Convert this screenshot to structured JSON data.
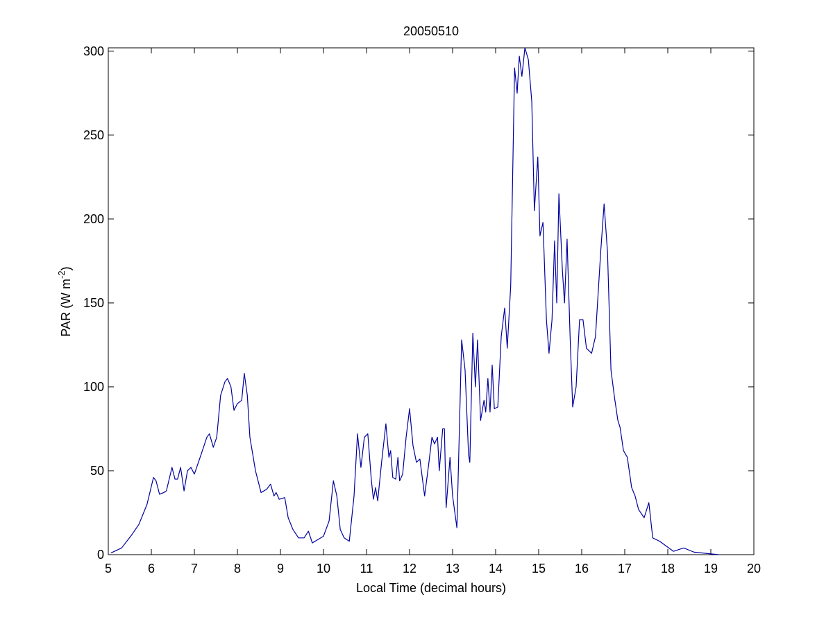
{
  "chart_data": {
    "type": "line",
    "title": "20050510",
    "xlabel": "Local Time (decimal hours)",
    "ylabel_parts": [
      "PAR (W m",
      "-2",
      ")"
    ],
    "xlim": [
      5,
      20
    ],
    "ylim": [
      0,
      302
    ],
    "xticks": [
      5,
      6,
      7,
      8,
      9,
      10,
      11,
      12,
      13,
      14,
      15,
      16,
      17,
      18,
      19,
      20
    ],
    "yticks": [
      0,
      50,
      100,
      150,
      200,
      250,
      300
    ],
    "grid": false,
    "series": [
      {
        "color": "#0000a0",
        "x": [
          5.06,
          5.31,
          5.55,
          5.71,
          5.9,
          6.05,
          6.11,
          6.19,
          6.29,
          6.35,
          6.48,
          6.55,
          6.61,
          6.68,
          6.76,
          6.84,
          6.92,
          7.0,
          7.16,
          7.29,
          7.35,
          7.44,
          7.52,
          7.61,
          7.71,
          7.77,
          7.85,
          7.92,
          8.0,
          8.1,
          8.16,
          8.23,
          8.29,
          8.42,
          8.55,
          8.68,
          8.77,
          8.85,
          8.9,
          8.97,
          9.1,
          9.18,
          9.29,
          9.42,
          9.55,
          9.65,
          9.74,
          9.87,
          10.0,
          10.13,
          10.23,
          10.31,
          10.39,
          10.48,
          10.6,
          10.71,
          10.79,
          10.87,
          10.95,
          11.03,
          11.11,
          11.16,
          11.21,
          11.26,
          11.35,
          11.45,
          11.52,
          11.56,
          11.61,
          11.68,
          11.73,
          11.77,
          11.84,
          11.92,
          12.0,
          12.08,
          12.16,
          12.24,
          12.35,
          12.45,
          12.52,
          12.58,
          12.65,
          12.69,
          12.77,
          12.81,
          12.85,
          12.94,
          13.0,
          13.1,
          13.21,
          13.29,
          13.37,
          13.4,
          13.47,
          13.53,
          13.58,
          13.65,
          13.73,
          13.77,
          13.82,
          13.87,
          13.92,
          13.97,
          14.05,
          14.13,
          14.21,
          14.27,
          14.35,
          14.44,
          14.5,
          14.55,
          14.61,
          14.68,
          14.76,
          14.84,
          14.9,
          14.98,
          15.03,
          15.1,
          15.18,
          15.24,
          15.31,
          15.37,
          15.42,
          15.47,
          15.55,
          15.6,
          15.66,
          15.73,
          15.79,
          15.87,
          15.95,
          16.03,
          16.11,
          16.23,
          16.32,
          16.44,
          16.52,
          16.6,
          16.68,
          16.76,
          16.84,
          16.89,
          16.97,
          17.06,
          17.16,
          17.24,
          17.32,
          17.45,
          17.56,
          17.65,
          17.81,
          17.97,
          18.13,
          18.37,
          18.61,
          19.18
        ],
        "values": [
          1,
          4,
          12,
          18,
          30,
          46,
          44,
          36,
          37,
          38,
          52,
          45,
          45,
          52,
          38,
          50,
          52,
          48,
          60,
          70,
          72,
          64,
          70,
          95,
          103,
          105,
          100,
          86,
          90,
          92,
          108,
          95,
          70,
          50,
          37,
          39,
          42,
          35,
          37,
          33,
          34,
          22,
          15,
          10,
          10,
          14,
          7,
          9,
          11,
          20,
          44,
          35,
          15,
          10,
          8,
          35,
          72,
          52,
          70,
          72,
          45,
          33,
          40,
          32,
          55,
          78,
          58,
          62,
          46,
          45,
          58,
          44,
          48,
          70,
          87,
          65,
          55,
          57,
          35,
          55,
          70,
          66,
          70,
          50,
          75,
          75,
          28,
          58,
          35,
          16,
          128,
          110,
          60,
          55,
          132,
          100,
          128,
          80,
          92,
          85,
          105,
          85,
          113,
          87,
          88,
          130,
          147,
          123,
          160,
          290,
          275,
          297,
          285,
          302,
          295,
          270,
          205,
          237,
          190,
          198,
          140,
          120,
          140,
          187,
          150,
          215,
          170,
          150,
          188,
          130,
          88,
          100,
          140,
          140,
          123,
          120,
          130,
          180,
          209,
          180,
          110,
          94,
          80,
          76,
          62,
          58,
          40,
          35,
          27,
          22,
          31,
          10,
          8,
          5,
          2,
          4,
          1.5,
          0
        ]
      }
    ]
  }
}
